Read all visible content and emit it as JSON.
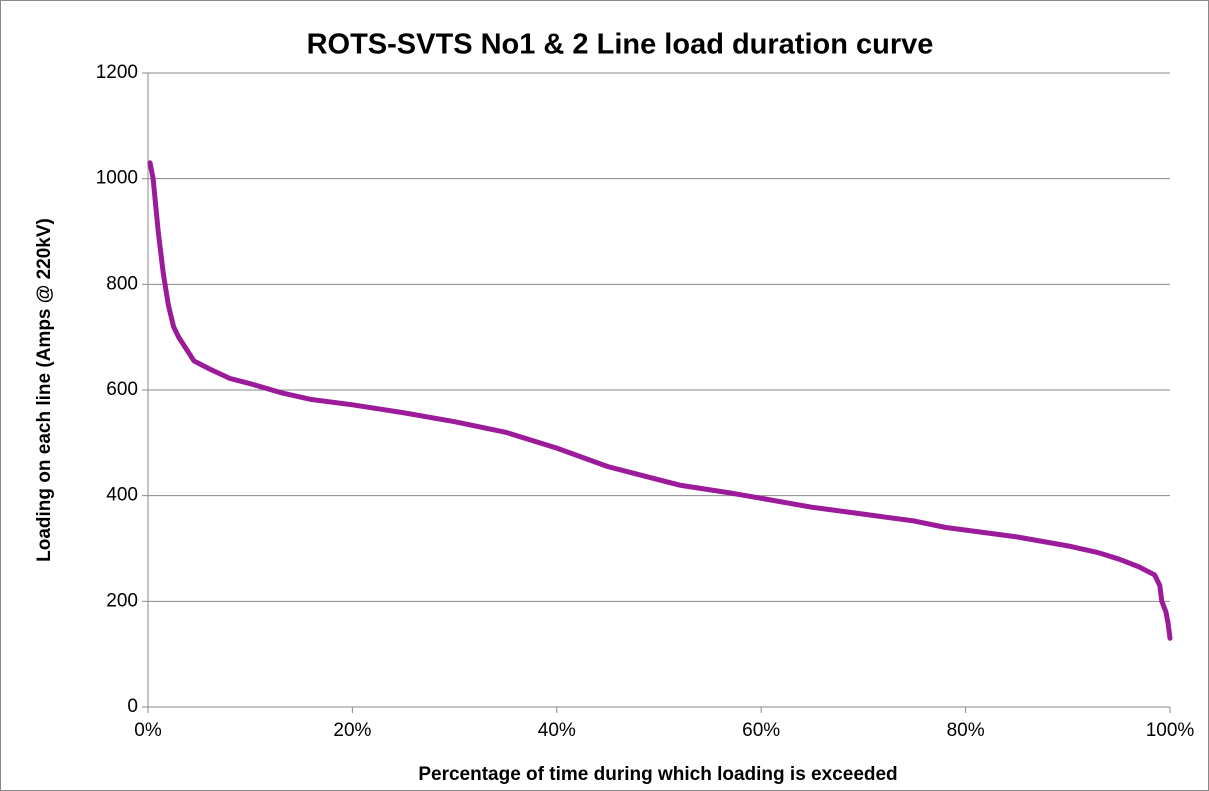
{
  "chart_data": {
    "type": "line",
    "title": "ROTS-SVTS No1 & 2 Line load duration curve",
    "x_label": "Percentage of time during which loading is exceeded",
    "y_label": "Loading on each line (Amps @ 220kV)",
    "x": [
      0.2,
      0.5,
      1,
      1.5,
      2,
      2.5,
      3,
      4,
      4.5,
      6,
      8,
      10,
      13,
      16,
      20,
      25,
      30,
      35,
      40,
      45,
      50,
      52,
      57,
      60,
      65,
      70,
      75,
      78,
      85,
      90,
      93,
      95,
      97,
      98.5,
      99,
      99.2,
      99.6,
      99.8,
      100
    ],
    "values": [
      1030,
      1000,
      900,
      820,
      760,
      720,
      700,
      670,
      655,
      640,
      622,
      612,
      595,
      582,
      572,
      557,
      540,
      520,
      490,
      455,
      430,
      420,
      405,
      395,
      378,
      365,
      352,
      340,
      322,
      305,
      292,
      280,
      265,
      250,
      230,
      200,
      180,
      160,
      130
    ],
    "color": "#9b1b9b",
    "xlim": [
      0,
      100
    ],
    "xticks": [
      {
        "value": 0,
        "label": "0%"
      },
      {
        "value": 20,
        "label": "20%"
      },
      {
        "value": 40,
        "label": "40%"
      },
      {
        "value": 60,
        "label": "60%"
      },
      {
        "value": 80,
        "label": "80%"
      },
      {
        "value": 100,
        "label": "100%"
      }
    ],
    "ylim": [
      0,
      1200
    ],
    "yticks": [
      0,
      200,
      400,
      600,
      800,
      1000,
      1200
    ],
    "grid": true
  }
}
